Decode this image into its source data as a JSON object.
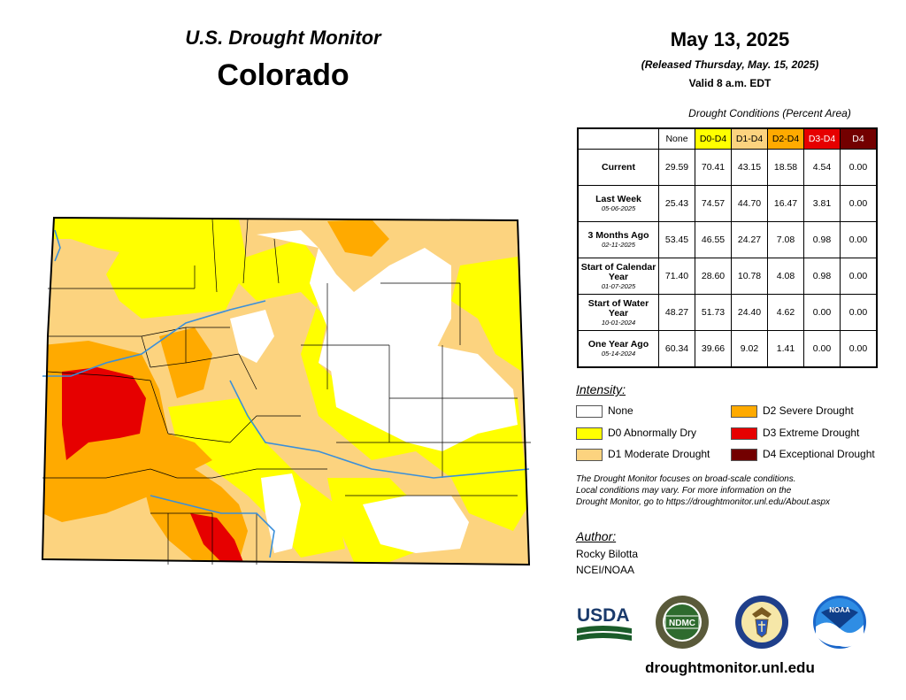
{
  "header": {
    "title_line1": "U.S. Drought Monitor",
    "title_line2": "Colorado",
    "date": "May 13, 2025",
    "released": "(Released Thursday, May. 15, 2025)",
    "valid": "Valid 8 a.m. EDT"
  },
  "table": {
    "caption": "Drought Conditions (Percent Area)",
    "columns": [
      {
        "label": "None",
        "color": "#ffffff",
        "text_color": "#000000"
      },
      {
        "label": "D0-D4",
        "color": "#ffff00",
        "text_color": "#000000"
      },
      {
        "label": "D1-D4",
        "color": "#fcd37f",
        "text_color": "#000000"
      },
      {
        "label": "D2-D4",
        "color": "#ffaa00",
        "text_color": "#000000"
      },
      {
        "label": "D3-D4",
        "color": "#e60000",
        "text_color": "#ffffff"
      },
      {
        "label": "D4",
        "color": "#730000",
        "text_color": "#ffffff"
      }
    ],
    "rows": [
      {
        "label": "Current",
        "date": "",
        "values": [
          "29.59",
          "70.41",
          "43.15",
          "18.58",
          "4.54",
          "0.00"
        ]
      },
      {
        "label": "Last Week",
        "date": "05-06-2025",
        "values": [
          "25.43",
          "74.57",
          "44.70",
          "16.47",
          "3.81",
          "0.00"
        ]
      },
      {
        "label": "3 Months Ago",
        "date": "02-11-2025",
        "values": [
          "53.45",
          "46.55",
          "24.27",
          "7.08",
          "0.98",
          "0.00"
        ]
      },
      {
        "label": "Start of Calendar Year",
        "date": "01-07-2025",
        "values": [
          "71.40",
          "28.60",
          "10.78",
          "4.08",
          "0.98",
          "0.00"
        ]
      },
      {
        "label": "Start of Water Year",
        "date": "10-01-2024",
        "values": [
          "48.27",
          "51.73",
          "24.40",
          "4.62",
          "0.00",
          "0.00"
        ]
      },
      {
        "label": "One Year Ago",
        "date": "05-14-2024",
        "values": [
          "60.34",
          "39.66",
          "9.02",
          "1.41",
          "0.00",
          "0.00"
        ]
      }
    ]
  },
  "legend": {
    "title": "Intensity:",
    "items": [
      {
        "label": "None",
        "color": "#ffffff"
      },
      {
        "label": "D0 Abnormally Dry",
        "color": "#ffff00"
      },
      {
        "label": "D1 Moderate Drought",
        "color": "#fcd37f"
      },
      {
        "label": "D2 Severe Drought",
        "color": "#ffaa00"
      },
      {
        "label": "D3 Extreme Drought",
        "color": "#e60000"
      },
      {
        "label": "D4 Exceptional Drought",
        "color": "#730000"
      }
    ]
  },
  "disclaimer": {
    "line1": "The Drought Monitor focuses on broad-scale conditions.",
    "line2": "Local conditions may vary. For more information on the",
    "line3": "Drought Monitor, go to https://droughtmonitor.unl.edu/About.aspx"
  },
  "author": {
    "label": "Author:",
    "name": "Rocky Bilotta",
    "org": "NCEI/NOAA"
  },
  "logos": {
    "usda": "USDA",
    "ndmc": "NDMC",
    "noaa": "NOAA"
  },
  "website": "droughtmonitor.unl.edu",
  "map": {
    "state": "Colorado",
    "river_color": "#3a8fd9"
  }
}
